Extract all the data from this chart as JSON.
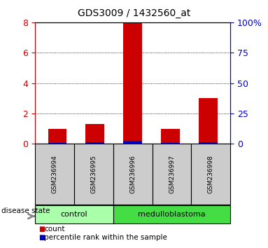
{
  "title": "GDS3009 / 1432560_at",
  "samples": [
    "GSM236994",
    "GSM236995",
    "GSM236996",
    "GSM236997",
    "GSM236998"
  ],
  "red_values": [
    1.0,
    1.3,
    8.0,
    1.0,
    3.0
  ],
  "blue_values": [
    0.08,
    0.09,
    0.18,
    0.08,
    0.12
  ],
  "ylim_left": [
    0,
    8
  ],
  "ylim_right": [
    0,
    100
  ],
  "left_ticks": [
    0,
    2,
    4,
    6,
    8
  ],
  "right_ticks": [
    0,
    25,
    50,
    75,
    100
  ],
  "right_tick_labels": [
    "0",
    "25",
    "50",
    "75",
    "100%"
  ],
  "groups": [
    {
      "label": "control",
      "indices": [
        0,
        1
      ],
      "color": "#AAFFAA"
    },
    {
      "label": "medulloblastoma",
      "indices": [
        2,
        3,
        4
      ],
      "color": "#44DD44"
    }
  ],
  "disease_state_label": "disease state",
  "bar_width": 0.5,
  "red_color": "#CC0000",
  "blue_color": "#0000CC",
  "bg_color": "#CCCCCC",
  "plot_bg": "white"
}
